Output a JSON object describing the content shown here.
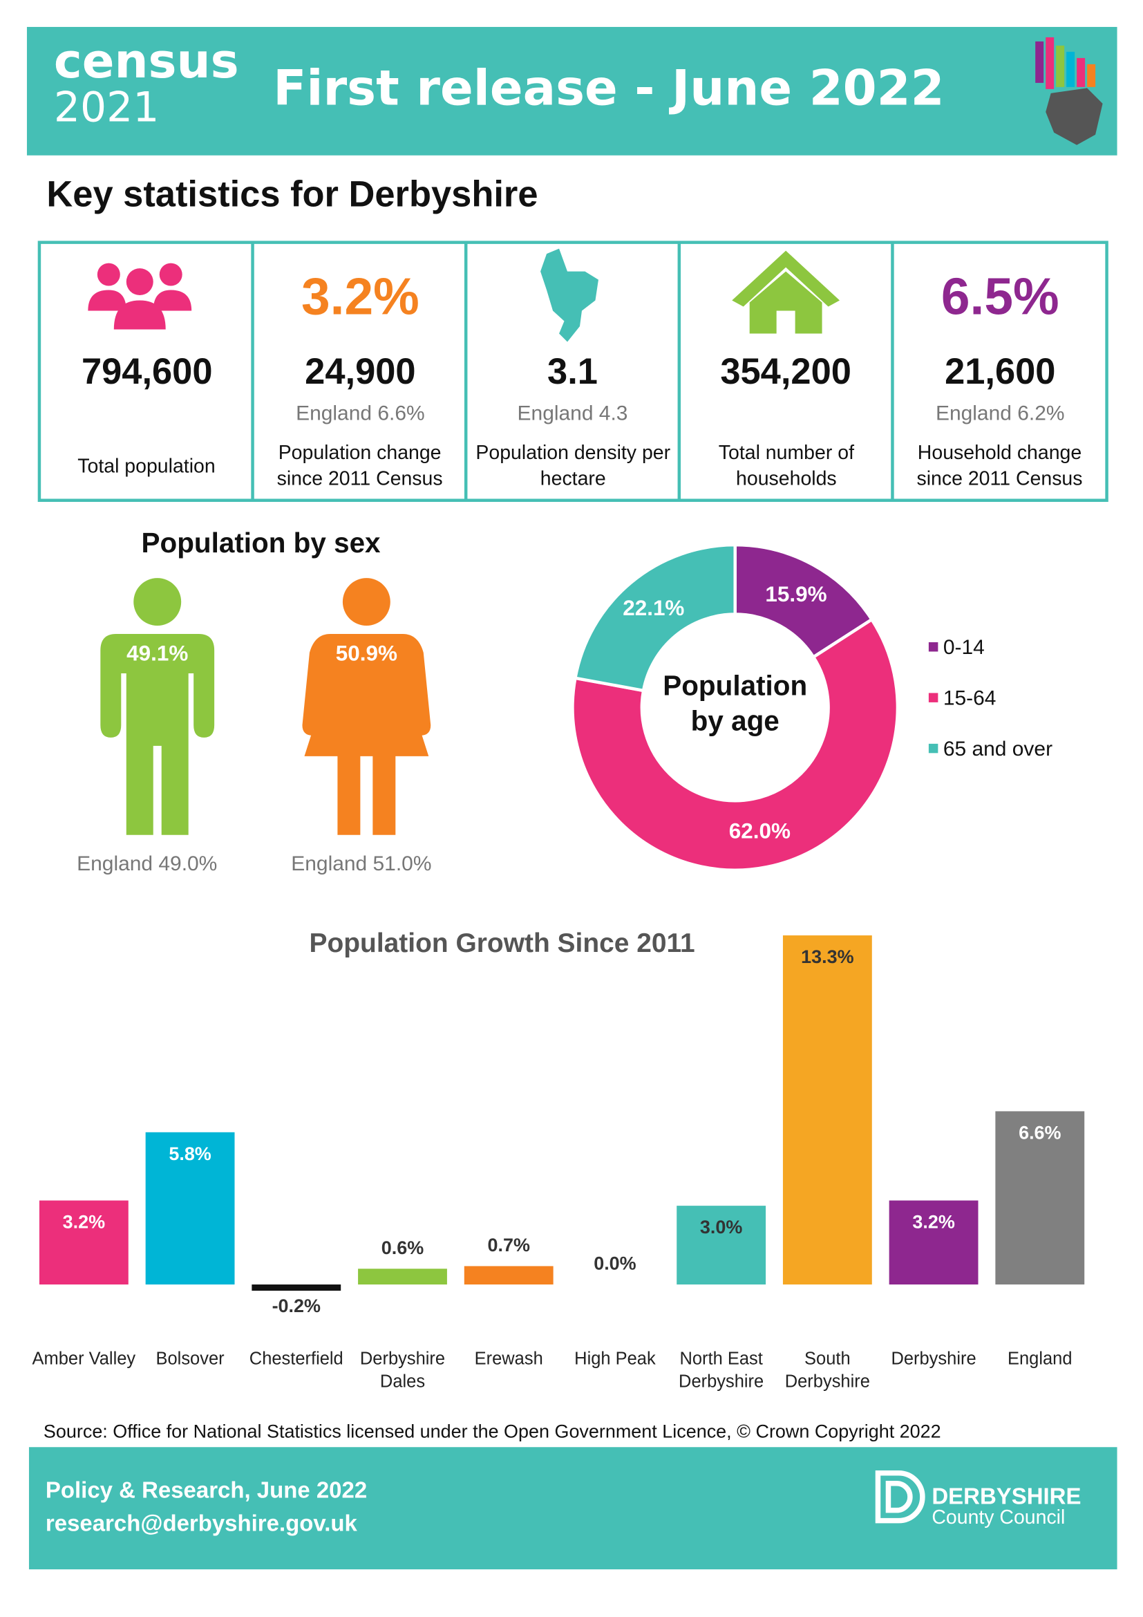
{
  "header": {
    "logo_word": "census",
    "logo_year": "2021",
    "title": "First release - June 2022"
  },
  "heading": "Key statistics for Derbyshire",
  "key_stats": [
    {
      "value": "794,600",
      "label": "Total population"
    },
    {
      "headline": "3.2%",
      "value": "24,900",
      "comparison": "England 6.6%",
      "label": "Population change since 2011 Census"
    },
    {
      "value": "3.1",
      "comparison": "England 4.3",
      "label": "Population density per hectare"
    },
    {
      "value": "354,200",
      "label": "Total number of households"
    },
    {
      "headline": "6.5%",
      "value": "21,600",
      "comparison": "England 6.2%",
      "label": "Household change since 2011 Census"
    }
  ],
  "chart_data": [
    {
      "type": "pictogram",
      "title": "Population by sex",
      "categories": [
        null,
        null
      ],
      "values": [
        49.1,
        50.9
      ],
      "value_labels": [
        "49.1%",
        "50.9%"
      ],
      "colors": [
        "#8dc63f",
        "#f58220"
      ],
      "comparisons": [
        "England 49.0%",
        "England 51.0%"
      ]
    },
    {
      "type": "donut",
      "title": "Population by age",
      "categories": [
        "0-14",
        "15-64",
        "65 and over"
      ],
      "values": [
        15.9,
        62.0,
        22.1
      ],
      "value_labels": [
        "15.9%",
        "62.0%",
        "22.1%"
      ],
      "colors": [
        "#8e278f",
        "#ec2f7b",
        "#45bfb5"
      ],
      "legend": "right"
    },
    {
      "type": "bar",
      "title": "Population Growth Since 2011",
      "categories": [
        "Amber Valley",
        "Bolsover",
        "Chesterfield",
        "Derbyshire Dales",
        "Erewash",
        "High Peak",
        "North East Derbyshire",
        "South Derbyshire",
        "Derbyshire",
        "England"
      ],
      "values": [
        3.2,
        5.8,
        -0.2,
        0.6,
        0.7,
        0.0,
        3.0,
        13.3,
        3.2,
        6.6
      ],
      "value_labels": [
        "3.2%",
        "5.8%",
        "-0.2%",
        "0.6%",
        "0.7%",
        "0.0%",
        "3.0%",
        "13.3%",
        "3.2%",
        "6.6%"
      ],
      "colors": [
        "#ec2f7b",
        "#00b5d6",
        "#111111",
        "#8dc63f",
        "#f58220",
        "#8dc63f",
        "#45bfb5",
        "#f5a623",
        "#8e278f",
        "#808080"
      ]
    }
  ],
  "source": "Source: Office for National Statistics licensed under the Open Government Licence, © Crown Copyright 2022",
  "footer": {
    "line1": "Policy & Research, June 2022",
    "line2": "research@derbyshire.gov.uk",
    "logo_name": "DERBYSHIRE",
    "logo_sub": "County Council"
  }
}
